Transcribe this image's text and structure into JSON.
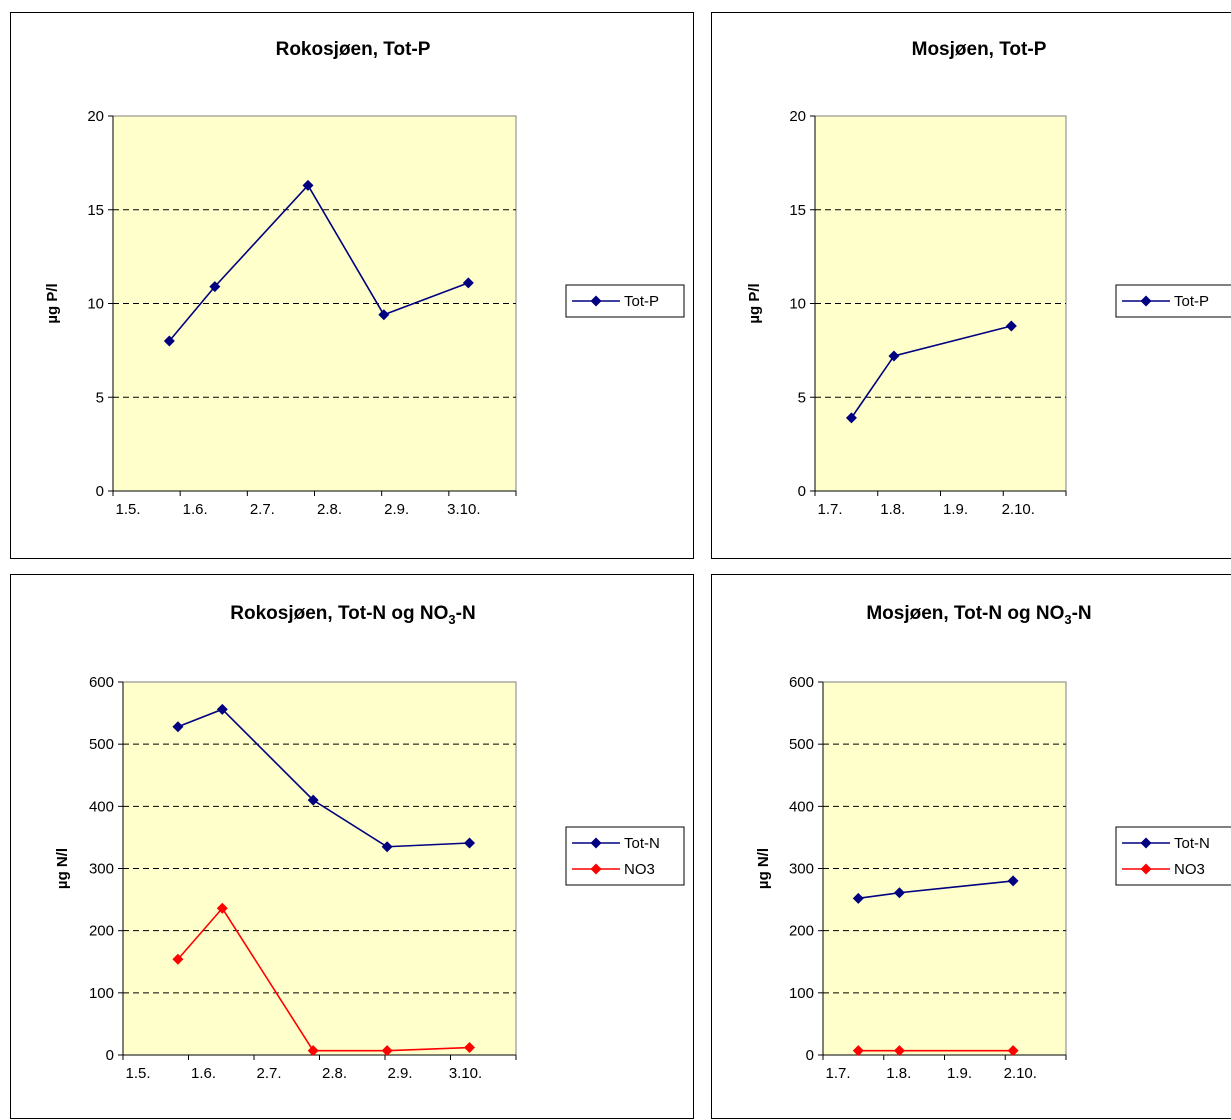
{
  "chart_data": [
    {
      "type": "line",
      "title": "Rokosjøen, Tot-P",
      "ylabel": "µg P/l",
      "xlabel": "",
      "ylim": [
        0,
        20
      ],
      "yticks": [
        0,
        5,
        10,
        15,
        20
      ],
      "xticks": [
        "1.5.",
        "1.6.",
        "2.7.",
        "2.8.",
        "2.9.",
        "3.10."
      ],
      "xticks_value": [
        0,
        31,
        62,
        93,
        124,
        155
      ],
      "xlim": [
        0,
        186
      ],
      "grid": "horizontal dashed",
      "legend_position": "right",
      "plot_background": "#FFFFCC",
      "series": [
        {
          "name": "Tot-P",
          "color": "#000080",
          "x": [
            26,
            47,
            90,
            125,
            164
          ],
          "values": [
            8.0,
            10.9,
            16.3,
            9.4,
            11.1
          ]
        }
      ]
    },
    {
      "type": "line",
      "title": "Mosjøen, Tot-P",
      "ylabel": "µg P/l",
      "xlabel": "",
      "ylim": [
        0,
        20
      ],
      "yticks": [
        0,
        5,
        10,
        15,
        20
      ],
      "xticks": [
        "1.7.",
        "1.8.",
        "1.9.",
        "2.10."
      ],
      "xticks_value": [
        0,
        31,
        62,
        93
      ],
      "xlim": [
        0,
        124
      ],
      "grid": "horizontal dashed",
      "legend_position": "right",
      "plot_background": "#FFFFCC",
      "series": [
        {
          "name": "Tot-P",
          "color": "#000080",
          "x": [
            18,
            39,
            97
          ],
          "values": [
            3.9,
            7.2,
            8.8
          ]
        }
      ]
    },
    {
      "type": "line",
      "title": "Rokosjøen, Tot-N og NO",
      "title_sub": "3",
      "title_tail": "-N",
      "ylabel": "µg N/l",
      "xlabel": "",
      "ylim": [
        0,
        600
      ],
      "yticks": [
        0,
        100,
        200,
        300,
        400,
        500,
        600
      ],
      "xticks": [
        "1.5.",
        "1.6.",
        "2.7.",
        "2.8.",
        "2.9.",
        "3.10."
      ],
      "xticks_value": [
        0,
        31,
        62,
        93,
        124,
        155
      ],
      "xlim": [
        0,
        186
      ],
      "grid": "horizontal dashed",
      "legend_position": "right",
      "plot_background": "#FFFFCC",
      "series": [
        {
          "name": "Tot-N",
          "color": "#000080",
          "x": [
            26,
            47,
            90,
            125,
            164
          ],
          "values": [
            528,
            556,
            410,
            335,
            341
          ]
        },
        {
          "name": "NO3",
          "color": "#FF0000",
          "x": [
            26,
            47,
            90,
            125,
            164
          ],
          "values": [
            154,
            236,
            7,
            7,
            12
          ]
        }
      ]
    },
    {
      "type": "line",
      "title": "Mosjøen, Tot-N og NO",
      "title_sub": "3",
      "title_tail": "-N",
      "ylabel": "µg N/l",
      "xlabel": "",
      "ylim": [
        0,
        600
      ],
      "yticks": [
        0,
        100,
        200,
        300,
        400,
        500,
        600
      ],
      "xticks": [
        "1.7.",
        "1.8.",
        "1.9.",
        "2.10."
      ],
      "xticks_value": [
        0,
        31,
        62,
        93
      ],
      "xlim": [
        0,
        124
      ],
      "grid": "horizontal dashed",
      "legend_position": "right",
      "plot_background": "#FFFFCC",
      "series": [
        {
          "name": "Tot-N",
          "color": "#000080",
          "x": [
            18,
            39,
            97
          ],
          "values": [
            252,
            261,
            280
          ]
        },
        {
          "name": "NO3",
          "color": "#FF0000",
          "x": [
            18,
            39,
            97
          ],
          "values": [
            7,
            7,
            7
          ]
        }
      ]
    }
  ]
}
